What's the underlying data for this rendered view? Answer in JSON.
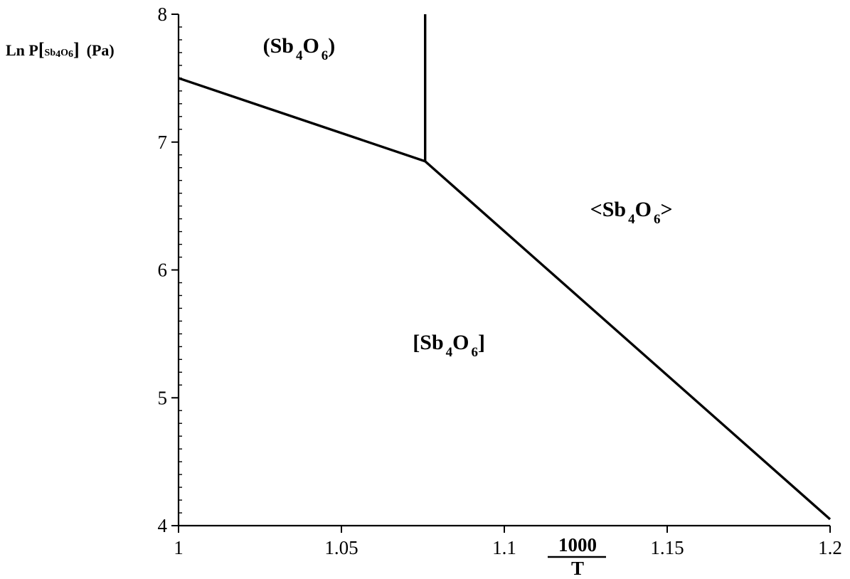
{
  "chart_data": {
    "type": "line",
    "xlim": [
      1,
      1.2
    ],
    "ylim": [
      4,
      8
    ],
    "x_ticks": [
      1,
      1.05,
      1.1,
      1.15,
      1.2
    ],
    "x_tick_labels": [
      "1",
      "1.05",
      "1.1",
      "1.15",
      "1.2"
    ],
    "y_ticks": [
      4,
      5,
      6,
      7,
      8
    ],
    "y_tick_labels": [
      "4",
      "5",
      "6",
      "7",
      "8"
    ],
    "y_minor_step": 0.1,
    "x_minor_step": null,
    "grid": false,
    "xlabel": {
      "numerator": "1000",
      "denominator": "T"
    },
    "ylabel": {
      "prefix": "Ln P",
      "bracket_open": "[",
      "species_Sb": "Sb",
      "sub_4": "4",
      "species_O": "O",
      "sub_6": "6",
      "bracket_close": "]",
      "unit": "(Pa)"
    },
    "series": [
      {
        "x": [
          1.0,
          1.0757,
          1.2
        ],
        "y": [
          7.5,
          6.85,
          4.05
        ]
      },
      {
        "x": [
          1.0757,
          1.0757
        ],
        "y": [
          6.85,
          8.0
        ]
      }
    ],
    "region_labels": [
      {
        "open": "(Sb",
        "sub1": "4",
        "mid": "O",
        "sub2": "6",
        "close": ")",
        "x": 1.037,
        "y": 7.7
      },
      {
        "open": "<Sb",
        "sub1": "4",
        "mid": "O",
        "sub2": "6",
        "close": ">",
        "x": 1.139,
        "y": 6.42
      },
      {
        "open": "[Sb",
        "sub1": "4",
        "mid": "O",
        "sub2": "6",
        "close": "]",
        "x": 1.083,
        "y": 5.38
      }
    ]
  }
}
